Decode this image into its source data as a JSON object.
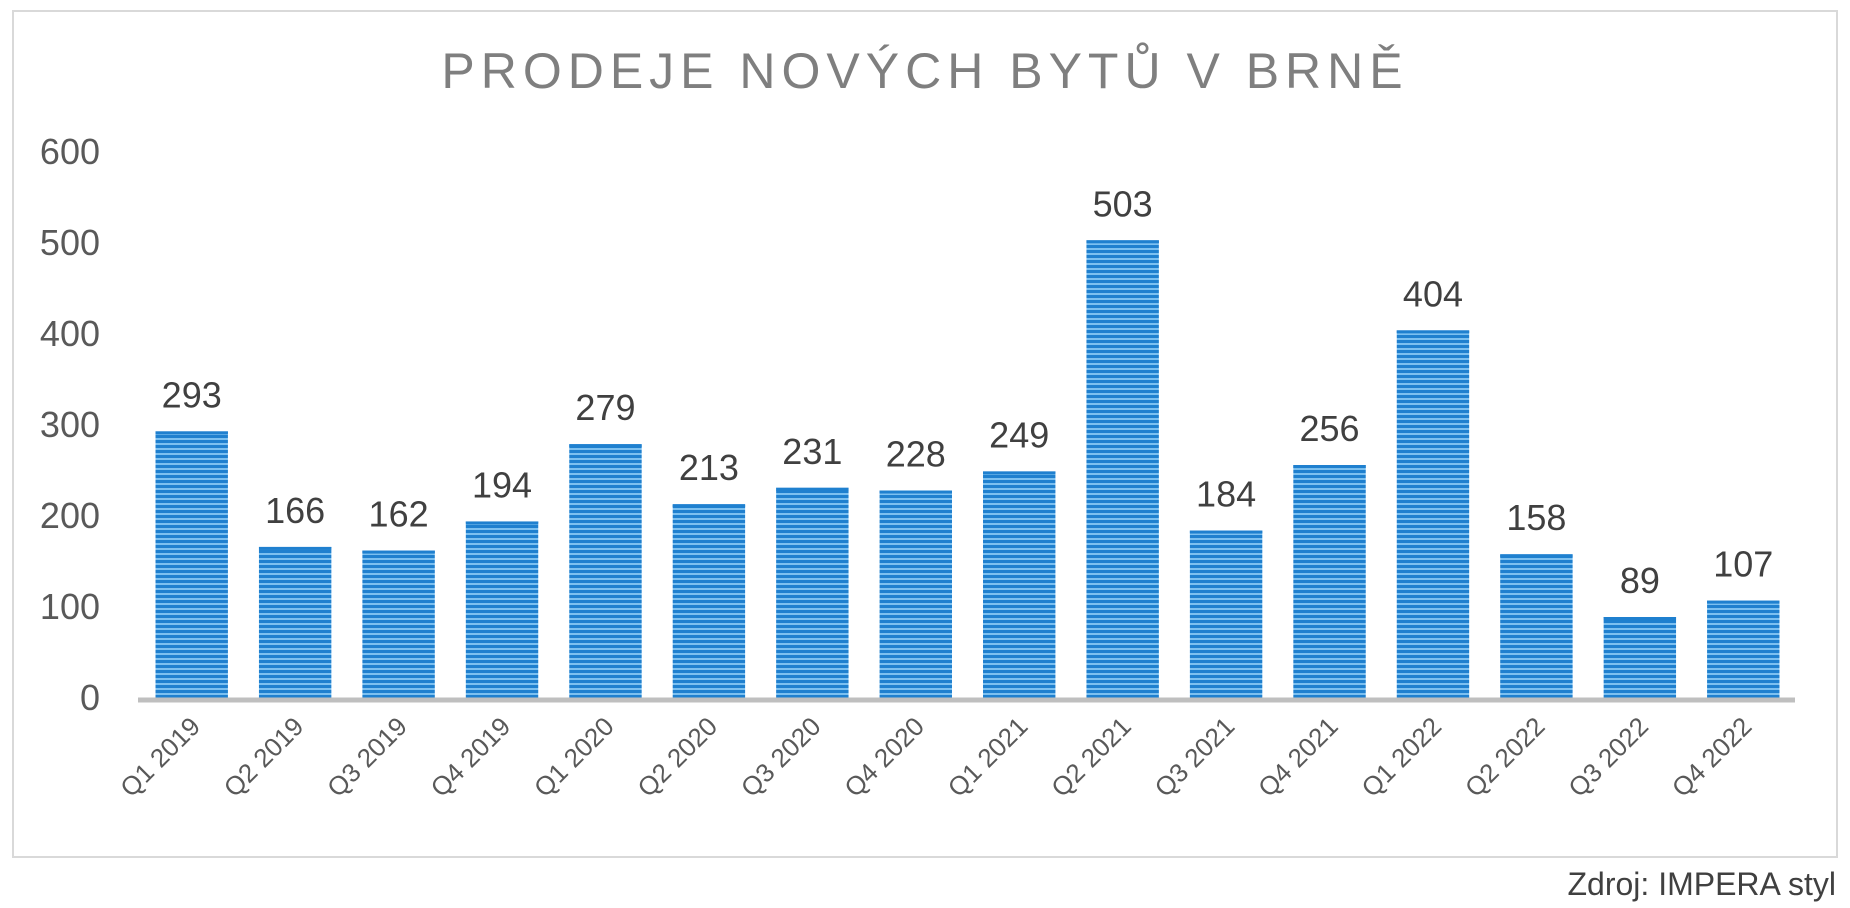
{
  "chart_data": {
    "type": "bar",
    "title": "PRODEJE NOVÝCH BYTŮ V BRNĚ",
    "categories": [
      "Q1 2019",
      "Q2 2019",
      "Q3 2019",
      "Q4 2019",
      "Q1 2020",
      "Q2 2020",
      "Q3 2020",
      "Q4 2020",
      "Q1 2021",
      "Q2 2021",
      "Q3 2021",
      "Q4 2021",
      "Q1 2022",
      "Q2 2022",
      "Q3 2022",
      "Q4 2022"
    ],
    "values": [
      293,
      166,
      162,
      194,
      279,
      213,
      231,
      228,
      249,
      503,
      184,
      256,
      404,
      158,
      89,
      107
    ],
    "ylim": [
      0,
      600
    ],
    "yticks": [
      0,
      100,
      200,
      300,
      400,
      500,
      600
    ],
    "grid": false,
    "legend": "none",
    "bar_color": "#1f80cf",
    "bar_stripe_color": "#7cc0f0",
    "axis_color": "#bfbfbf",
    "title_color": "#7f7f7f",
    "label_color": "#404040",
    "tick_color": "#595959"
  },
  "source": "Zdroj: IMPERA styl"
}
